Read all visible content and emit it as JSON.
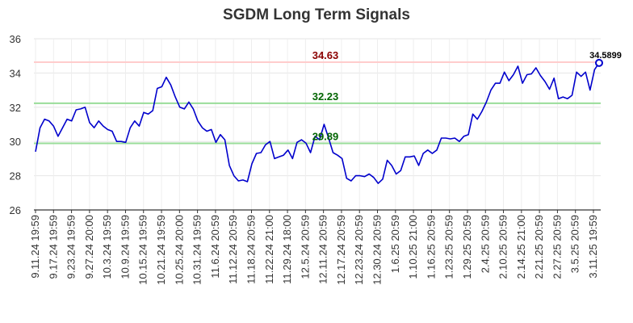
{
  "chart_data": {
    "type": "line",
    "title": "SGDM Long Term Signals",
    "xlabel": "",
    "ylabel": "",
    "ylim": [
      26,
      36
    ],
    "yticks": [
      26,
      28,
      30,
      32,
      34,
      36
    ],
    "grid": true,
    "xtick_labels": [
      "9.11.24 19:59",
      "9.17.24 19:59",
      "9.23.24 19:59",
      "9.27.24 20:00",
      "10.3.24 19:59",
      "10.9.24 19:59",
      "10.15.24 19:59",
      "10.21.24 19:59",
      "10.25.24 20:00",
      "10.31.24 19:59",
      "11.6.24 20:59",
      "11.12.24 20:59",
      "11.18.24 20:59",
      "11.22.24 21:00",
      "11.29.24 18:00",
      "12.5.24 20:59",
      "12.11.24 20:59",
      "12.17.24 20:59",
      "12.23.24 20:59",
      "12.30.24 20:59",
      "1.6.25 20:59",
      "1.10.25 21:00",
      "1.16.25 20:59",
      "1.23.25 20:59",
      "1.29.25 20:59",
      "2.4.25 20:59",
      "2.10.25 20:59",
      "2.14.25 21:00",
      "2.21.25 20:59",
      "2.27.25 20:59",
      "3.5.25 20:59",
      "3.11.25 19:59"
    ],
    "series": [
      {
        "color": "#0000cc",
        "values": [
          29.4,
          30.8,
          31.3,
          31.2,
          30.9,
          30.3,
          30.8,
          31.3,
          31.2,
          31.85,
          31.9,
          32.0,
          31.1,
          30.8,
          31.2,
          30.9,
          30.7,
          30.6,
          30.0,
          30.0,
          29.95,
          30.8,
          31.2,
          30.9,
          31.7,
          31.6,
          31.8,
          33.1,
          33.2,
          33.75,
          33.3,
          32.6,
          32.0,
          31.9,
          32.3,
          31.9,
          31.2,
          30.8,
          30.6,
          30.7,
          29.95,
          30.4,
          30.1,
          28.6,
          28.0,
          27.7,
          27.75,
          27.65,
          28.7,
          29.3,
          29.35,
          29.8,
          30.0,
          29.0,
          29.1,
          29.2,
          29.5,
          29.0,
          29.95,
          30.1,
          29.9,
          29.35,
          30.3,
          30.1,
          31.0,
          30.2,
          29.35,
          29.2,
          29.0,
          27.85,
          27.7,
          28.0,
          28.0,
          27.95,
          28.1,
          27.9,
          27.55,
          27.8,
          28.9,
          28.6,
          28.1,
          28.3,
          29.1,
          29.1,
          29.15,
          28.6,
          29.3,
          29.5,
          29.3,
          29.5,
          30.2,
          30.2,
          30.15,
          30.2,
          30.0,
          30.3,
          30.4,
          31.6,
          31.3,
          31.75,
          32.3,
          33.0,
          33.4,
          33.4,
          34.05,
          33.55,
          33.9,
          34.4,
          33.4,
          33.9,
          33.95,
          34.3,
          33.85,
          33.5,
          33.05,
          33.7,
          32.5,
          32.6,
          32.5,
          32.7,
          34.05,
          33.8,
          34.05,
          33.0,
          34.2,
          34.5899
        ]
      }
    ],
    "levels": [
      {
        "value": 34.63,
        "label": "34.63",
        "line_color": "#ffcccc",
        "label_color": "#8b0000"
      },
      {
        "value": 32.23,
        "label": "32.23",
        "line_color": "#99dd99",
        "label_color": "#006400"
      },
      {
        "value": 29.89,
        "label": "29.89",
        "line_color": "#99dd99",
        "label_color": "#006400"
      }
    ],
    "last_point_label": "34.5899"
  }
}
